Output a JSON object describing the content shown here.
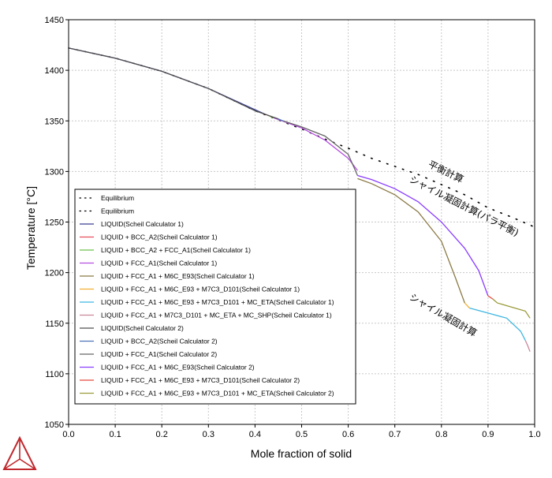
{
  "chart_data": {
    "type": "line",
    "title": "",
    "xlabel": "Mole fraction of solid",
    "ylabel": "Temperature [°C]",
    "xlim": [
      0.0,
      1.0
    ],
    "ylim": [
      1050,
      1450
    ],
    "xticks": [
      0.0,
      0.1,
      0.2,
      0.3,
      0.4,
      0.5,
      0.6,
      0.7,
      0.8,
      0.9,
      1.0
    ],
    "yticks": [
      1050,
      1100,
      1150,
      1200,
      1250,
      1300,
      1350,
      1400,
      1450
    ],
    "grid": true,
    "legend_position": "bottom-left",
    "annotations": [
      {
        "text": "平衡計算",
        "x": 0.77,
        "y": 1305,
        "angle": 26
      },
      {
        "text": "シャイル凝固計算(パラ平衡)",
        "x": 0.73,
        "y": 1290,
        "angle": 27
      },
      {
        "text": "シャイル凝固計算",
        "x": 0.73,
        "y": 1174,
        "angle": 30
      }
    ],
    "series": [
      {
        "name": "Equilibrium",
        "color": "#000000",
        "style": "dotted",
        "points": [
          [
            0.0,
            1422
          ],
          [
            0.1,
            1412
          ],
          [
            0.2,
            1399
          ],
          [
            0.3,
            1382
          ],
          [
            0.4,
            1360
          ],
          [
            0.45,
            1351
          ],
          [
            0.5,
            1342
          ],
          [
            0.55,
            1332
          ],
          [
            0.6,
            1323
          ],
          [
            0.65,
            1313
          ],
          [
            0.7,
            1305
          ],
          [
            0.75,
            1297
          ],
          [
            0.8,
            1287
          ],
          [
            0.85,
            1277
          ],
          [
            0.9,
            1264
          ],
          [
            0.95,
            1255
          ],
          [
            1.0,
            1245
          ]
        ]
      },
      {
        "name": "Equilibrium",
        "color": "#000000",
        "style": "dotted",
        "points": []
      },
      {
        "name": "LIQUID(Scheil Calculator 1)",
        "color": "#3a3f8f",
        "style": "solid",
        "points": [
          [
            0.0,
            1422
          ],
          [
            0.1,
            1412
          ],
          [
            0.2,
            1399
          ],
          [
            0.3,
            1382
          ],
          [
            0.4,
            1361
          ],
          [
            0.42,
            1357
          ]
        ]
      },
      {
        "name": "LIQUID + BCC_A2(Scheil Calculator 1)",
        "color": "#e8505b",
        "style": "solid",
        "points": [
          [
            0.42,
            1357
          ],
          [
            0.43,
            1355
          ]
        ]
      },
      {
        "name": "LIQUID + BCC_A2 + FCC_A1(Scheil Calculator 1)",
        "color": "#6cc04a",
        "style": "solid",
        "points": [
          [
            0.43,
            1355
          ],
          [
            0.44,
            1353
          ]
        ]
      },
      {
        "name": "LIQUID + FCC_A1(Scheil Calculator 1)",
        "color": "#b44fe0",
        "style": "solid",
        "points": [
          [
            0.44,
            1353
          ],
          [
            0.5,
            1343
          ],
          [
            0.55,
            1331
          ],
          [
            0.6,
            1313
          ],
          [
            0.62,
            1301
          ]
        ]
      },
      {
        "name": "LIQUID + FCC_A1 + M6C_E93(Scheil Calculator 1)",
        "color": "#8a7a45",
        "style": "solid",
        "points": [
          [
            0.62,
            1293
          ],
          [
            0.65,
            1288
          ],
          [
            0.7,
            1277
          ],
          [
            0.75,
            1260
          ],
          [
            0.8,
            1231
          ],
          [
            0.83,
            1195
          ],
          [
            0.85,
            1170
          ]
        ]
      },
      {
        "name": "LIQUID + FCC_A1 + M6C_E93 + M7C3_D101(Scheil Calculator 1)",
        "color": "#f2b134",
        "style": "solid",
        "points": [
          [
            0.85,
            1170
          ],
          [
            0.86,
            1165
          ]
        ]
      },
      {
        "name": "LIQUID + FCC_A1 + M6C_E93 + M7C3_D101 + MC_ETA(Scheil Calculator 1)",
        "color": "#3fb6e0",
        "style": "solid",
        "points": [
          [
            0.86,
            1165
          ],
          [
            0.9,
            1160
          ],
          [
            0.94,
            1155
          ],
          [
            0.97,
            1142
          ],
          [
            0.98,
            1133
          ]
        ]
      },
      {
        "name": "LIQUID + FCC_A1 + M7C3_D101 + MC_ETA + MC_SHP(Scheil Calculator 1)",
        "color": "#c9869a",
        "style": "solid",
        "points": [
          [
            0.98,
            1133
          ],
          [
            0.985,
            1128
          ],
          [
            0.99,
            1122
          ]
        ]
      },
      {
        "name": "LIQUID(Scheil Calculator 2)",
        "color": "#505050",
        "style": "solid",
        "points": [
          [
            0.0,
            1422
          ],
          [
            0.1,
            1412
          ],
          [
            0.2,
            1399
          ],
          [
            0.3,
            1382
          ],
          [
            0.4,
            1360
          ],
          [
            0.45,
            1352
          ]
        ]
      },
      {
        "name": "LIQUID + BCC_A2(Scheil Calculator 2)",
        "color": "#4c74b8",
        "style": "solid",
        "points": [
          [
            0.45,
            1352
          ],
          [
            0.46,
            1350
          ]
        ]
      },
      {
        "name": "LIQUID + FCC_A1(Scheil Calculator 2)",
        "color": "#666666",
        "style": "solid",
        "points": [
          [
            0.46,
            1350
          ],
          [
            0.5,
            1344
          ],
          [
            0.55,
            1335
          ],
          [
            0.6,
            1317
          ],
          [
            0.62,
            1296
          ]
        ]
      },
      {
        "name": "LIQUID + FCC_A1 + M6C_E93(Scheil Calculator 2)",
        "color": "#8b3dff",
        "style": "solid",
        "points": [
          [
            0.62,
            1296
          ],
          [
            0.65,
            1292
          ],
          [
            0.7,
            1283
          ],
          [
            0.75,
            1270
          ],
          [
            0.8,
            1250
          ],
          [
            0.85,
            1224
          ],
          [
            0.88,
            1202
          ],
          [
            0.9,
            1177
          ]
        ]
      },
      {
        "name": "LIQUID + FCC_A1 + M6C_E93 + M7C3_D101(Scheil Calculator 2)",
        "color": "#e84a3c",
        "style": "solid",
        "points": [
          [
            0.9,
            1177
          ],
          [
            0.91,
            1174
          ]
        ]
      },
      {
        "name": "LIQUID + FCC_A1 + M6C_E93 + M7C3_D101 + MC_ETA(Scheil Calculator 2)",
        "color": "#9a9a3a",
        "style": "solid",
        "points": [
          [
            0.91,
            1174
          ],
          [
            0.92,
            1170
          ],
          [
            0.95,
            1166
          ],
          [
            0.98,
            1162
          ],
          [
            0.99,
            1155
          ]
        ]
      }
    ]
  },
  "logo": {
    "color": "#c0282d"
  }
}
